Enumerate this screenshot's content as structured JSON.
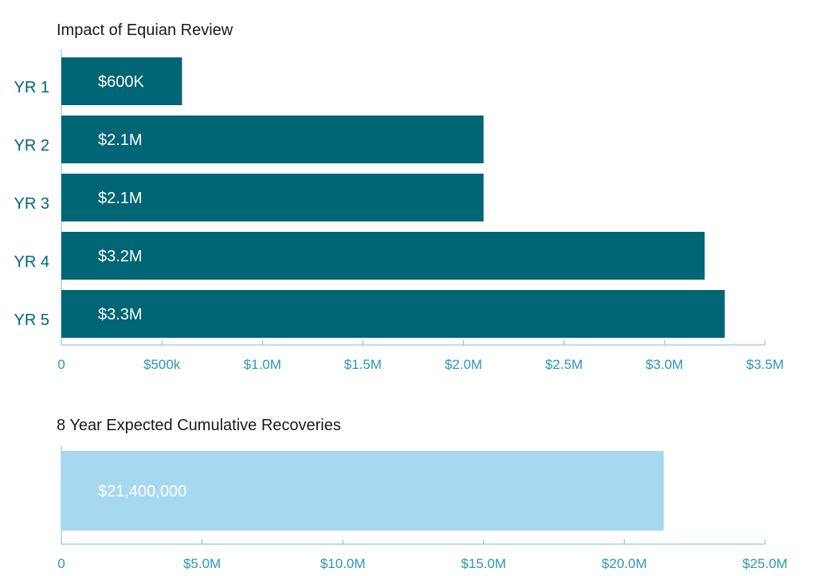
{
  "chart_data": [
    {
      "type": "bar",
      "orientation": "horizontal",
      "title": "Impact of Equian Review",
      "categories": [
        "YR 1",
        "YR 2",
        "YR 3",
        "YR 4",
        "YR 5"
      ],
      "values": [
        600000,
        2100000,
        2100000,
        3200000,
        3300000
      ],
      "data_labels": [
        "$600K",
        "$2.1M",
        "$2.1M",
        "$3.2M",
        "$3.3M"
      ],
      "xlim": [
        0,
        3500000
      ],
      "xticks": [
        0,
        500000,
        1000000,
        1500000,
        2000000,
        2500000,
        3000000,
        3500000
      ],
      "xtick_labels": [
        "0",
        "$500k",
        "$1.0M",
        "$1.5M",
        "$2.0M",
        "$2.5M",
        "$3.0M",
        "$3.5M"
      ],
      "bar_color": "#006574",
      "grid": false
    },
    {
      "type": "bar",
      "orientation": "horizontal",
      "title": "8 Year Expected Cumulative Recoveries",
      "categories": [
        ""
      ],
      "values": [
        21400000
      ],
      "data_labels": [
        "$21,400,000"
      ],
      "xlim": [
        0,
        25000000
      ],
      "xticks": [
        0,
        5000000,
        10000000,
        15000000,
        20000000,
        25000000
      ],
      "xtick_labels": [
        "0",
        "$5.0M",
        "$10.0M",
        "$15.0M",
        "$20.0M",
        "$25.0M"
      ],
      "bar_color": "#a6d8f2",
      "grid": false
    }
  ]
}
